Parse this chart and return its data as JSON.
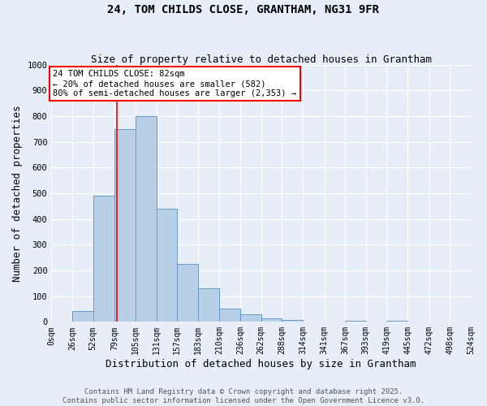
{
  "title": "24, TOM CHILDS CLOSE, GRANTHAM, NG31 9FR",
  "subtitle": "Size of property relative to detached houses in Grantham",
  "xlabel": "Distribution of detached houses by size in Grantham",
  "ylabel": "Number of detached properties",
  "bin_edges": [
    0,
    26,
    52,
    79,
    105,
    131,
    157,
    183,
    210,
    236,
    262,
    288,
    314,
    341,
    367,
    393,
    419,
    445,
    472,
    498,
    524
  ],
  "bin_heights": [
    0,
    42,
    490,
    750,
    800,
    440,
    225,
    130,
    50,
    28,
    15,
    8,
    0,
    0,
    5,
    0,
    5,
    0,
    0,
    0
  ],
  "bar_color": "#b8cfe8",
  "bar_edgecolor": "#6699cc",
  "property_line_x": 82,
  "property_line_color": "red",
  "annotation_text": "24 TOM CHILDS CLOSE: 82sqm\n← 20% of detached houses are smaller (582)\n80% of semi-detached houses are larger (2,353) →",
  "annotation_box_color": "white",
  "annotation_box_edgecolor": "red",
  "ylim": [
    0,
    1000
  ],
  "xlim": [
    0,
    524
  ],
  "background_color": "#e8eef8",
  "footer_line1": "Contains HM Land Registry data © Crown copyright and database right 2025.",
  "footer_line2": "Contains public sector information licensed under the Open Government Licence v3.0.",
  "title_fontsize": 10,
  "subtitle_fontsize": 9,
  "tick_label_fontsize": 7,
  "axis_label_fontsize": 9,
  "annotation_fontsize": 7.5,
  "footer_fontsize": 6.5
}
